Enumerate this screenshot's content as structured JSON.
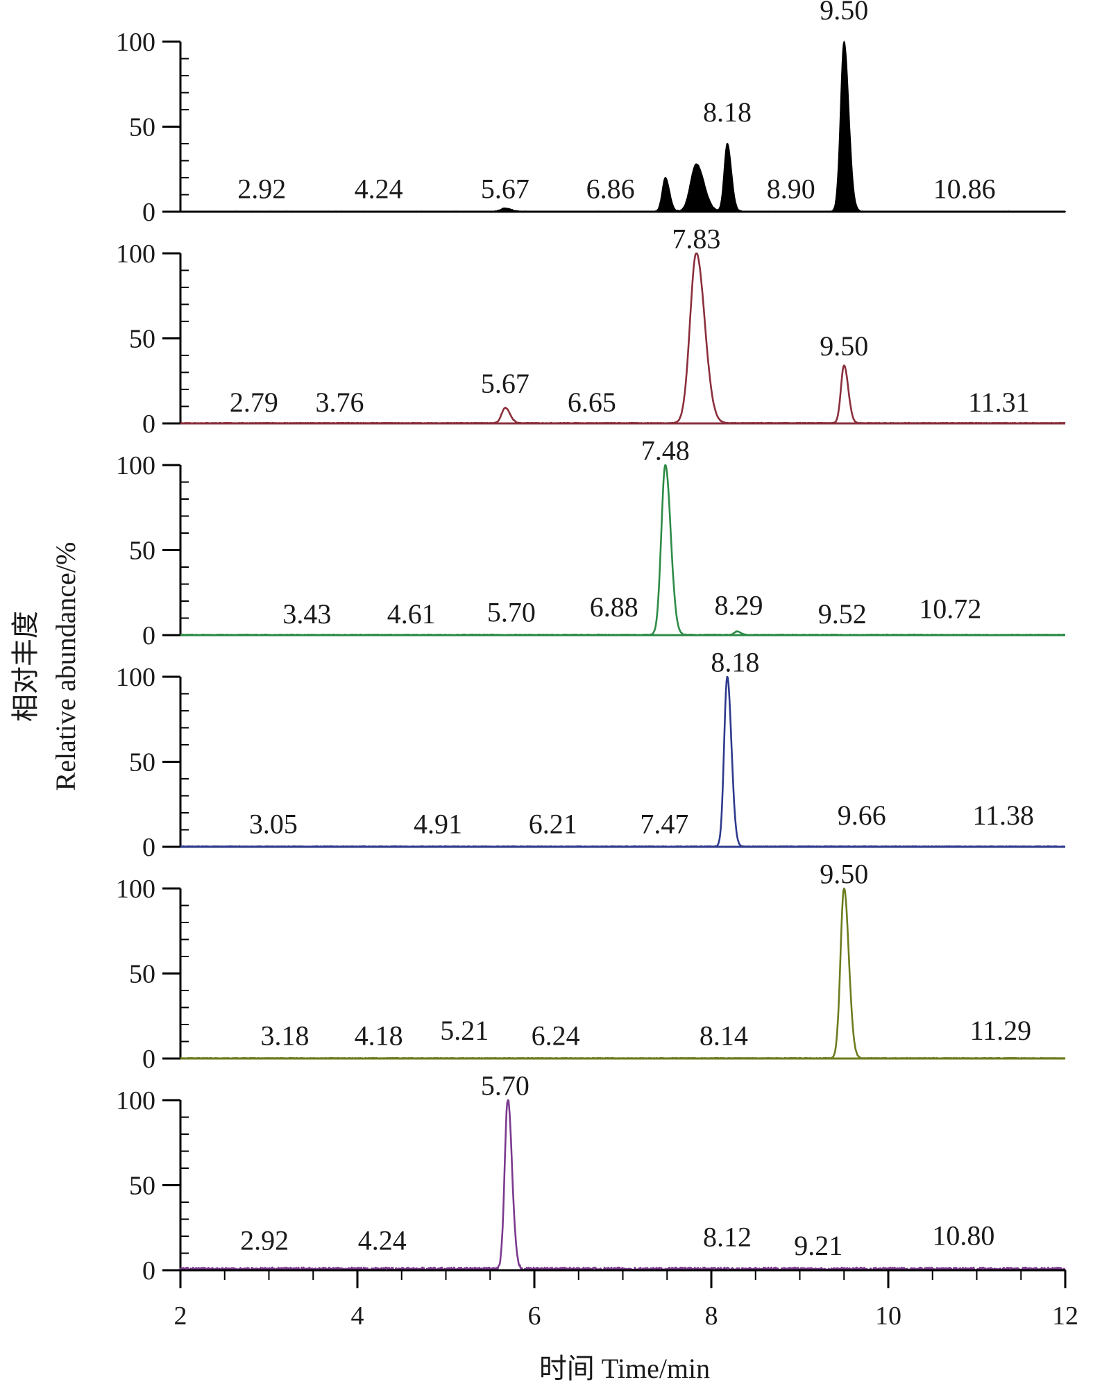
{
  "chart_data": {
    "type": "line",
    "title": "",
    "xlabel": "时间 Time/min",
    "ylabel_cn": "相对丰度",
    "ylabel_en": "Relative abundance/%",
    "xlim": [
      2,
      12
    ],
    "ylim": [
      0,
      100
    ],
    "x_ticks": [
      2,
      4,
      6,
      8,
      10,
      12
    ],
    "y_ticks": [
      0,
      50,
      100
    ],
    "grid": false,
    "panels": [
      {
        "name": "total-ion-chromatogram",
        "color": "#000000",
        "filled": true,
        "peaks": [
          {
            "rt": 5.67,
            "height": 2,
            "width": 0.05
          },
          {
            "rt": 7.48,
            "height": 20,
            "width": 0.035
          },
          {
            "rt": 7.83,
            "height": 28,
            "width": 0.065
          },
          {
            "rt": 8.18,
            "height": 40,
            "width": 0.035
          },
          {
            "rt": 9.5,
            "height": 100,
            "width": 0.04
          }
        ],
        "labels": [
          {
            "text": "2.92",
            "x": 2.92,
            "y": 8
          },
          {
            "text": "4.24",
            "x": 4.24,
            "y": 8
          },
          {
            "text": "5.67",
            "x": 5.67,
            "y": 8
          },
          {
            "text": "6.86",
            "x": 6.86,
            "y": 8
          },
          {
            "text": "8.18",
            "x": 8.18,
            "y": 53
          },
          {
            "text": "8.90",
            "x": 8.9,
            "y": 8
          },
          {
            "text": "9.50",
            "x": 9.5,
            "y": 113
          },
          {
            "text": "10.86",
            "x": 10.86,
            "y": 8
          }
        ]
      },
      {
        "name": "ion-chromatogram-2",
        "color": "#8b2f3c",
        "filled": false,
        "peaks": [
          {
            "rt": 5.67,
            "height": 9,
            "width": 0.04
          },
          {
            "rt": 7.83,
            "height": 100,
            "width": 0.07
          },
          {
            "rt": 9.5,
            "height": 34,
            "width": 0.035
          }
        ],
        "labels": [
          {
            "text": "2.79",
            "x": 2.83,
            "y": 7
          },
          {
            "text": "3.76",
            "x": 3.8,
            "y": 7
          },
          {
            "text": "5.67",
            "x": 5.67,
            "y": 18
          },
          {
            "text": "6.65",
            "x": 6.65,
            "y": 7
          },
          {
            "text": "7.83",
            "x": 7.83,
            "y": 103
          },
          {
            "text": "9.50",
            "x": 9.5,
            "y": 40
          },
          {
            "text": "11.31",
            "x": 11.25,
            "y": 7
          }
        ]
      },
      {
        "name": "ion-chromatogram-3",
        "color": "#2e8b47",
        "filled": false,
        "peaks": [
          {
            "rt": 7.48,
            "height": 100,
            "width": 0.045
          },
          {
            "rt": 8.29,
            "height": 2,
            "width": 0.03
          }
        ],
        "labels": [
          {
            "text": "3.43",
            "x": 3.43,
            "y": 7
          },
          {
            "text": "4.61",
            "x": 4.61,
            "y": 7
          },
          {
            "text": "5.70",
            "x": 5.74,
            "y": 8
          },
          {
            "text": "6.88",
            "x": 6.9,
            "y": 11
          },
          {
            "text": "7.48",
            "x": 7.48,
            "y": 103
          },
          {
            "text": "8.29",
            "x": 8.31,
            "y": 12
          },
          {
            "text": "9.52",
            "x": 9.48,
            "y": 7
          },
          {
            "text": "10.72",
            "x": 10.7,
            "y": 10
          }
        ]
      },
      {
        "name": "ion-chromatogram-4",
        "color": "#2e3a8c",
        "filled": false,
        "peaks": [
          {
            "rt": 8.18,
            "height": 100,
            "width": 0.035
          }
        ],
        "labels": [
          {
            "text": "3.05",
            "x": 3.05,
            "y": 8
          },
          {
            "text": "4.91",
            "x": 4.91,
            "y": 8
          },
          {
            "text": "6.21",
            "x": 6.21,
            "y": 8
          },
          {
            "text": "7.47",
            "x": 7.47,
            "y": 8
          },
          {
            "text": "8.18",
            "x": 8.27,
            "y": 103
          },
          {
            "text": "9.66",
            "x": 9.7,
            "y": 13
          },
          {
            "text": "11.38",
            "x": 11.3,
            "y": 13
          }
        ]
      },
      {
        "name": "ion-chromatogram-5",
        "color": "#6b7d1f",
        "filled": false,
        "peaks": [
          {
            "rt": 9.5,
            "height": 100,
            "width": 0.04
          }
        ],
        "labels": [
          {
            "text": "3.18",
            "x": 3.18,
            "y": 8
          },
          {
            "text": "4.18",
            "x": 4.24,
            "y": 8
          },
          {
            "text": "5.21",
            "x": 5.21,
            "y": 11
          },
          {
            "text": "6.24",
            "x": 6.24,
            "y": 8
          },
          {
            "text": "8.14",
            "x": 8.14,
            "y": 8
          },
          {
            "text": "9.50",
            "x": 9.5,
            "y": 103
          },
          {
            "text": "11.29",
            "x": 11.27,
            "y": 11
          }
        ]
      },
      {
        "name": "ion-chromatogram-6",
        "color": "#7b3a8e",
        "filled": false,
        "noisy": true,
        "peaks": [
          {
            "rt": 5.7,
            "height": 100,
            "width": 0.035
          }
        ],
        "labels": [
          {
            "text": "2.92",
            "x": 2.95,
            "y": 12
          },
          {
            "text": "4.24",
            "x": 4.28,
            "y": 12
          },
          {
            "text": "5.70",
            "x": 5.67,
            "y": 103
          },
          {
            "text": "8.12",
            "x": 8.18,
            "y": 14
          },
          {
            "text": "9.21",
            "x": 9.21,
            "y": 9
          },
          {
            "text": "10.80",
            "x": 10.85,
            "y": 15
          }
        ]
      }
    ]
  }
}
